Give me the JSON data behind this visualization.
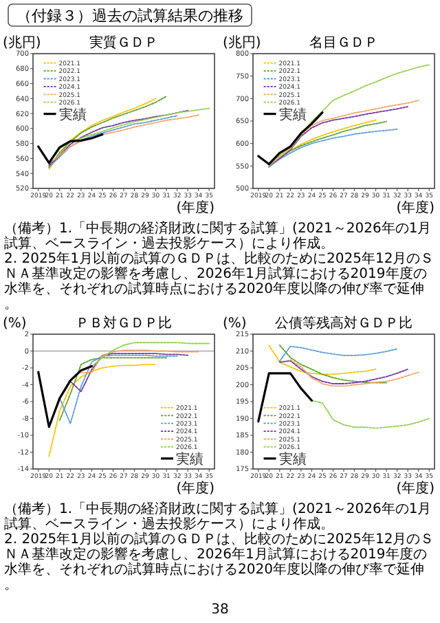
{
  "chart_data": [
    {
      "type": "other",
      "title": "（付録３）過去の試算結果の推移"
    },
    {
      "type": "line",
      "title": "実質ＧＤＰ",
      "ylabel": "(兆円)",
      "xlabel": "(年度)",
      "legend": "top left",
      "ylim": [
        520,
        700
      ],
      "yticks": [
        520,
        540,
        560,
        580,
        600,
        620,
        640,
        660,
        680,
        700
      ],
      "categories": [
        "2019",
        "20",
        "21",
        "22",
        "23",
        "24",
        "25",
        "26",
        "27",
        "28",
        "29",
        "30",
        "31",
        "32",
        "33",
        "34",
        "35"
      ],
      "series": [
        {
          "name": "2021.1",
          "color": "#ffc000",
          "line_style": "dashed",
          "values": [
            null,
            546,
            565,
            584,
            595,
            604,
            611,
            616,
            622,
            627,
            633,
            640,
            null,
            null,
            null,
            null,
            null
          ]
        },
        {
          "name": "2022.1",
          "color": "#5aa02c",
          "line_style": "dashed",
          "values": [
            null,
            548,
            568,
            582,
            594,
            602,
            608,
            614,
            619,
            624,
            629,
            635,
            643,
            null,
            null,
            null,
            null
          ]
        },
        {
          "name": "2023.1",
          "color": "#5b9bd5",
          "line_style": "dashed",
          "values": [
            null,
            549,
            562,
            576,
            584,
            590,
            594,
            598,
            602,
            606,
            608,
            611,
            614,
            617,
            null,
            null,
            null
          ]
        },
        {
          "name": "2024.1",
          "color": "#7030a0",
          "line_style": "dashed",
          "values": [
            null,
            551,
            564,
            579,
            588,
            595,
            601,
            604,
            608,
            611,
            613,
            616,
            618,
            621,
            624,
            null,
            null
          ]
        },
        {
          "name": "2025.1",
          "color": "#f4a460",
          "line_style": "dashed",
          "values": [
            null,
            553,
            564,
            576,
            583,
            587,
            592,
            595,
            598,
            602,
            605,
            608,
            611,
            613,
            615,
            618,
            null
          ]
        },
        {
          "name": "2026.1",
          "color": "#92d050",
          "line_style": "dashed",
          "values": [
            null,
            554,
            573,
            582,
            587,
            592,
            596,
            601,
            605,
            609,
            612,
            615,
            618,
            621,
            623,
            625,
            627
          ]
        },
        {
          "name": "実績",
          "color": "#000000",
          "line_style": "solid",
          "values": [
            576,
            554,
            575,
            583,
            584,
            587,
            592,
            null,
            null,
            null,
            null,
            null,
            null,
            null,
            null,
            null,
            null
          ]
        }
      ]
    },
    {
      "type": "line",
      "title": "名目ＧＤＰ",
      "ylabel": "(兆円)",
      "xlabel": "(年度)",
      "legend": "top left",
      "ylim": [
        500,
        800
      ],
      "yticks": [
        500,
        550,
        600,
        650,
        700,
        750,
        800
      ],
      "categories": [
        "2019",
        "20",
        "21",
        "22",
        "23",
        "24",
        "25",
        "26",
        "27",
        "28",
        "29",
        "30",
        "31",
        "32",
        "33",
        "34",
        "35"
      ],
      "series": [
        {
          "name": "2021.1",
          "color": "#ffc000",
          "line_style": "dashed",
          "values": [
            null,
            547,
            570,
            584,
            598,
            609,
            618,
            626,
            633,
            640,
            646,
            652,
            null,
            null,
            null,
            null,
            null
          ]
        },
        {
          "name": "2022.1",
          "color": "#5aa02c",
          "line_style": "dashed",
          "values": [
            null,
            548,
            567,
            584,
            595,
            604,
            612,
            619,
            627,
            633,
            640,
            644,
            649,
            null,
            null,
            null,
            null
          ]
        },
        {
          "name": "2023.1",
          "color": "#5b9bd5",
          "line_style": "dashed",
          "values": [
            null,
            548,
            565,
            579,
            591,
            600,
            606,
            612,
            616,
            621,
            624,
            627,
            629,
            632,
            null,
            null,
            null
          ]
        },
        {
          "name": "2024.1",
          "color": "#7030a0",
          "line_style": "dashed",
          "values": [
            null,
            551,
            567,
            586,
            616,
            635,
            646,
            652,
            656,
            660,
            665,
            669,
            673,
            677,
            682,
            null,
            null
          ]
        },
        {
          "name": "2025.1",
          "color": "#f4a460",
          "line_style": "dashed",
          "values": [
            null,
            551,
            570,
            588,
            619,
            640,
            651,
            656,
            662,
            668,
            672,
            677,
            682,
            686,
            690,
            696,
            null
          ]
        },
        {
          "name": "2026.1",
          "color": "#92d050",
          "line_style": "dashed",
          "values": [
            null,
            554,
            574,
            591,
            619,
            649,
            672,
            696,
            707,
            717,
            728,
            737,
            747,
            756,
            763,
            770,
            775
          ]
        },
        {
          "name": "実績",
          "color": "#000000",
          "line_style": "solid",
          "values": [
            572,
            554,
            579,
            593,
            623,
            644,
            669,
            null,
            null,
            null,
            null,
            null,
            null,
            null,
            null,
            null,
            null
          ]
        }
      ]
    },
    {
      "type": "other",
      "annotations": [
        "（備考）1.「中長期の経済財政に関する試算」(2021～2026年の1月試算、ベースライン・過去投影ケース）により作成。",
        "2. 2025年1月以前の試算のＧＤＰは、比較のために2025年12月のＳＮＡ基準改定の影響を考慮し、2026年1月試算における2019年度の水準を、それぞれの試算時点における2020年度以降の伸び率で延伸。"
      ]
    },
    {
      "type": "line",
      "title": "ＰＢ対ＧＤＰ比",
      "ylabel": "(%)",
      "xlabel": "(年度)",
      "legend": "bottom right",
      "ylim": [
        -14,
        2
      ],
      "yticks": [
        -14,
        -12,
        -10,
        -8,
        -6,
        -4,
        -2,
        0,
        2
      ],
      "ref_lines": [
        {
          "axis": "y",
          "value": 0,
          "color": "#a6a6a6"
        }
      ],
      "categories": [
        "2019",
        "20",
        "21",
        "22",
        "23",
        "24",
        "25",
        "26",
        "27",
        "28",
        "29",
        "30",
        "31",
        "32",
        "33",
        "34",
        "35"
      ],
      "series": [
        {
          "name": "2021.1",
          "color": "#ffc000",
          "line_style": "dashed",
          "values": [
            null,
            -12.5,
            -7.1,
            -4.2,
            -3.1,
            -2.4,
            -2.0,
            -1.8,
            -1.7,
            -1.7,
            -1.6,
            -1.6,
            null,
            null,
            null,
            null,
            null
          ]
        },
        {
          "name": "2022.1",
          "color": "#5aa02c",
          "line_style": "dashed",
          "values": [
            null,
            null,
            -8.2,
            -5.1,
            -1.6,
            -1.0,
            -0.8,
            -0.8,
            -0.8,
            -0.8,
            -0.8,
            -0.8,
            -0.8,
            null,
            null,
            null,
            null
          ]
        },
        {
          "name": "2023.1",
          "color": "#5b9bd5",
          "line_style": "dashed",
          "values": [
            null,
            null,
            -5.6,
            -8.6,
            -4.2,
            -1.3,
            -0.6,
            -0.5,
            -0.5,
            -0.5,
            -0.5,
            -0.6,
            -0.6,
            -0.6,
            null,
            null,
            null
          ]
        },
        {
          "name": "2024.1",
          "color": "#7030a0",
          "line_style": "dashed",
          "values": [
            null,
            null,
            null,
            -3.6,
            -4.8,
            -2.2,
            -0.5,
            -0.3,
            -0.3,
            -0.3,
            -0.3,
            -0.3,
            -0.4,
            -0.4,
            -0.5,
            null,
            null
          ]
        },
        {
          "name": "2025.1",
          "color": "#f4a460",
          "line_style": "dashed",
          "values": [
            null,
            null,
            null,
            null,
            -2.6,
            -2.5,
            -0.5,
            -0.1,
            0.1,
            0.1,
            0.1,
            0.0,
            0.0,
            -0.1,
            -0.1,
            -0.1,
            null
          ]
        },
        {
          "name": "2026.1",
          "color": "#92d050",
          "line_style": "dashed",
          "values": [
            null,
            null,
            null,
            null,
            null,
            -1.8,
            -0.8,
            0.1,
            0.7,
            1.0,
            1.0,
            1.0,
            1.0,
            1.0,
            0.9,
            0.9,
            0.9
          ]
        },
        {
          "name": "実績",
          "color": "#000000",
          "line_style": "solid",
          "values": [
            -2.5,
            -9.0,
            -5.6,
            -3.5,
            -2.3,
            -1.8,
            null,
            null,
            null,
            null,
            null,
            null,
            null,
            null,
            null,
            null,
            null
          ]
        }
      ]
    },
    {
      "type": "line",
      "title": "公債等残高対ＧＤＰ比",
      "ylabel": "(%)",
      "xlabel": "(年度)",
      "legend": "bottom left",
      "ylim": [
        175,
        215
      ],
      "yticks": [
        175,
        180,
        185,
        190,
        195,
        200,
        205,
        210,
        215
      ],
      "categories": [
        "2019",
        "20",
        "21",
        "22",
        "23",
        "24",
        "25",
        "26",
        "27",
        "28",
        "29",
        "30",
        "31",
        "32",
        "33",
        "34",
        "35"
      ],
      "series": [
        {
          "name": "2021.1",
          "color": "#ffc000",
          "line_style": "dashed",
          "values": [
            null,
            211.7,
            206.7,
            205.3,
            203.9,
            203.4,
            203.1,
            203.1,
            203.4,
            203.7,
            204.0,
            204.6,
            null,
            null,
            null,
            null,
            null
          ]
        },
        {
          "name": "2022.1",
          "color": "#5aa02c",
          "line_style": "dashed",
          "values": [
            null,
            null,
            211.7,
            208.1,
            206.0,
            204.6,
            203.1,
            202.1,
            201.4,
            201.0,
            200.7,
            200.6,
            200.6,
            null,
            null,
            null,
            null
          ]
        },
        {
          "name": "2023.1",
          "color": "#5b9bd5",
          "line_style": "dashed",
          "values": [
            null,
            null,
            207.0,
            211.4,
            211.0,
            210.3,
            209.6,
            209.1,
            208.7,
            208.7,
            208.9,
            209.3,
            209.9,
            210.6,
            null,
            null,
            null
          ]
        },
        {
          "name": "2024.1",
          "color": "#7030a0",
          "line_style": "dashed",
          "values": [
            null,
            null,
            206.7,
            207.1,
            204.6,
            202.4,
            201.0,
            200.3,
            200.3,
            200.6,
            201.0,
            201.7,
            202.4,
            203.4,
            204.6,
            null,
            null
          ]
        },
        {
          "name": "2025.1",
          "color": "#f4a460",
          "line_style": "dashed",
          "values": [
            null,
            null,
            null,
            207.4,
            205.3,
            202.0,
            200.3,
            199.6,
            199.6,
            200.0,
            200.3,
            200.7,
            201.0,
            201.7,
            202.7,
            203.7,
            null
          ]
        },
        {
          "name": "2026.1",
          "color": "#92d050",
          "line_style": "dashed",
          "values": [
            null,
            null,
            null,
            null,
            null,
            195.3,
            194.6,
            189.6,
            188.1,
            187.4,
            187.4,
            187.1,
            187.4,
            187.7,
            188.1,
            188.9,
            190.0
          ]
        },
        {
          "name": "実績",
          "color": "#000000",
          "line_style": "solid",
          "values": [
            189.1,
            203.4,
            203.4,
            203.4,
            198.9,
            195.3,
            null,
            null,
            null,
            null,
            null,
            null,
            null,
            null,
            null,
            null,
            null
          ]
        }
      ]
    },
    {
      "type": "other",
      "annotations": [
        "（備考）1.「中長期の経済財政に関する試算」(2021～2026年の1月試算、ベースライン・過去投影ケース）により作成。",
        "2. 2025年1月以前の試算のＧＤＰは、比較のために2025年12月のＳＮＡ基準改定の影響を考慮し、2026年1月試算における2019年度の水準を、それぞれの試算時点における2020年度以降の伸び率で延伸。"
      ]
    },
    {
      "type": "other",
      "annotations": [
        "38"
      ]
    }
  ]
}
